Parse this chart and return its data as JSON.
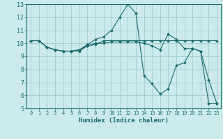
{
  "xlabel": "Humidex (Indice chaleur)",
  "bg_color": "#cceaea",
  "grid_color": "#aad0d0",
  "line_color": "#1a6b6b",
  "xlim": [
    -0.5,
    23.5
  ],
  "ylim": [
    5,
    13
  ],
  "xticks": [
    0,
    1,
    2,
    3,
    4,
    5,
    6,
    7,
    8,
    9,
    10,
    11,
    12,
    13,
    14,
    15,
    16,
    17,
    18,
    19,
    20,
    21,
    22,
    23
  ],
  "yticks": [
    5,
    6,
    7,
    8,
    9,
    10,
    11,
    12,
    13
  ],
  "series": [
    {
      "x": [
        0,
        1,
        2,
        3,
        4,
        5,
        6,
        7,
        8,
        9,
        10,
        11,
        12,
        13,
        14,
        15,
        16,
        17,
        18,
        19,
        20,
        21,
        22,
        23
      ],
      "y": [
        10.2,
        10.2,
        9.7,
        9.5,
        9.4,
        9.4,
        9.4,
        9.8,
        9.9,
        10.2,
        10.2,
        10.2,
        10.2,
        10.2,
        10.2,
        10.2,
        10.2,
        10.2,
        10.2,
        10.2,
        10.2,
        10.2,
        10.2,
        10.2
      ]
    },
    {
      "x": [
        0,
        1,
        2,
        3,
        4,
        5,
        6,
        7,
        8,
        9,
        10,
        11,
        12,
        13,
        14,
        15,
        16,
        17,
        18,
        19,
        20,
        21,
        22,
        23
      ],
      "y": [
        10.2,
        10.2,
        9.7,
        9.5,
        9.4,
        9.4,
        9.5,
        9.9,
        10.3,
        10.5,
        11.0,
        12.0,
        13.0,
        12.3,
        7.5,
        6.9,
        6.1,
        6.5,
        8.3,
        8.5,
        9.6,
        9.4,
        7.2,
        5.4
      ]
    },
    {
      "x": [
        0,
        1,
        2,
        3,
        4,
        5,
        6,
        7,
        8,
        9,
        10,
        11,
        12,
        13,
        14,
        15,
        16,
        17,
        18,
        19,
        20,
        21,
        22,
        23
      ],
      "y": [
        10.2,
        10.2,
        9.7,
        9.5,
        9.4,
        9.4,
        9.5,
        9.8,
        10.0,
        10.0,
        10.1,
        10.1,
        10.1,
        10.1,
        10.0,
        9.8,
        9.5,
        10.7,
        10.3,
        9.6,
        9.6,
        9.4,
        5.4,
        5.4
      ]
    }
  ]
}
